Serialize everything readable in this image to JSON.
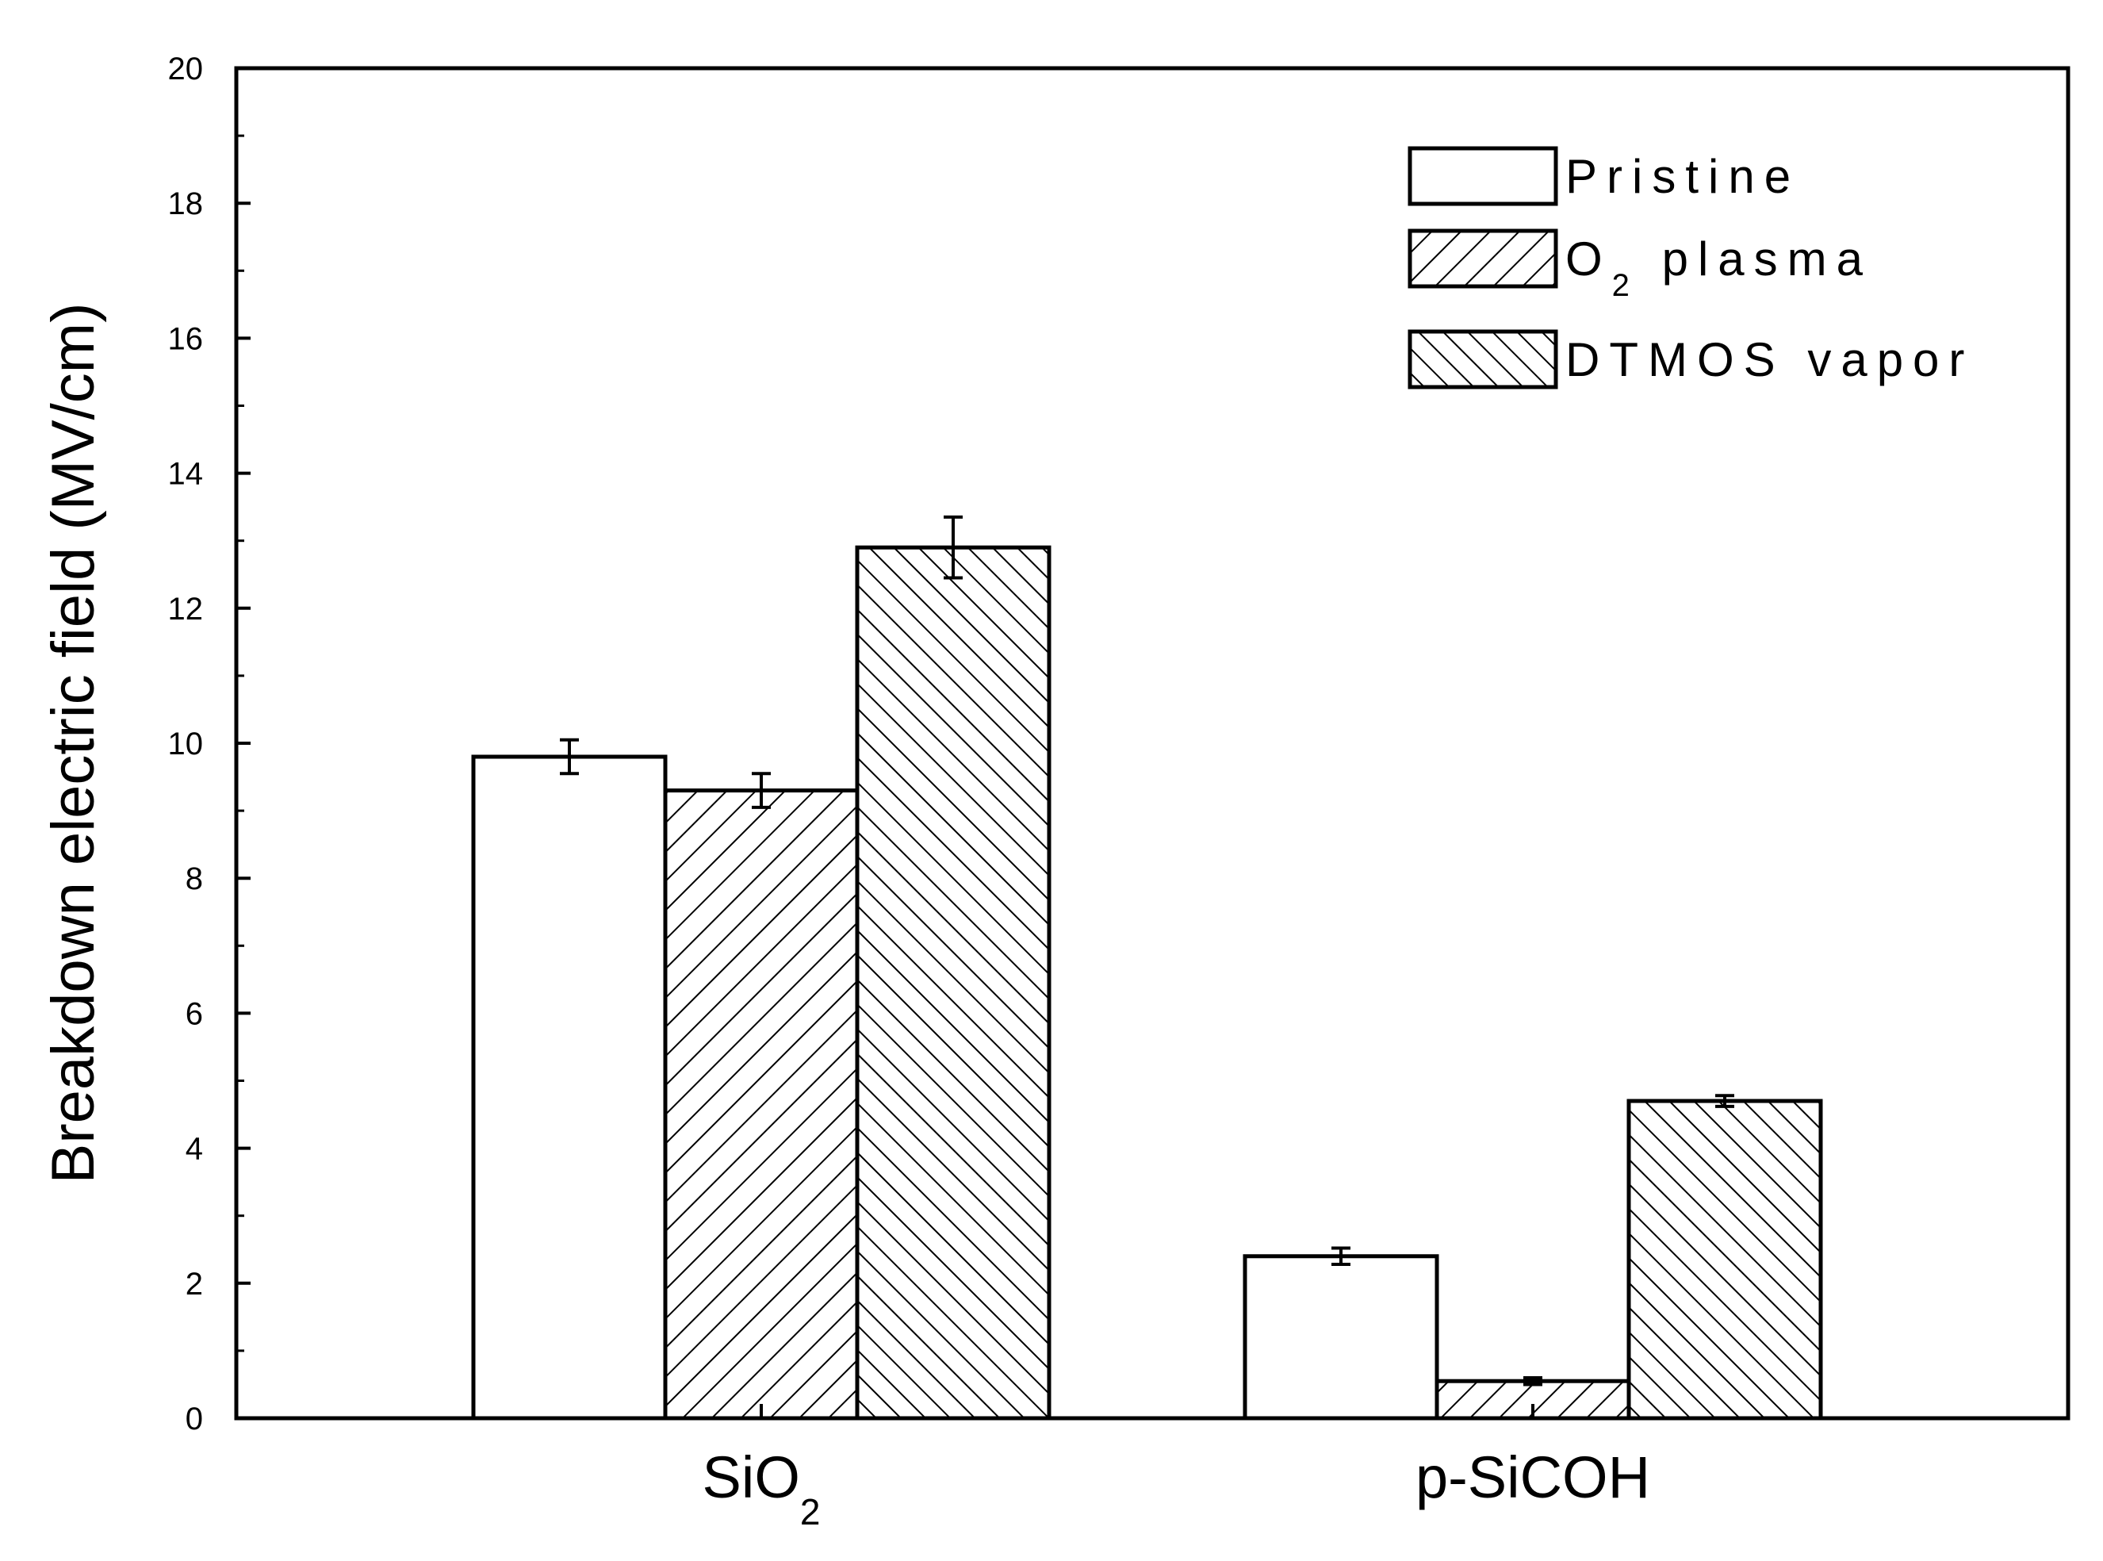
{
  "chart_data": {
    "type": "bar",
    "title": "",
    "xlabel": "",
    "ylabel": "Breakdown electric field (MV/cm)",
    "ylim": [
      0,
      20
    ],
    "yticks": [
      0,
      2,
      4,
      6,
      8,
      10,
      12,
      14,
      16,
      18,
      20
    ],
    "grid": false,
    "legend_position": "top-right",
    "categories": [
      {
        "base": "SiO",
        "sub": "2"
      },
      {
        "base": "p-SiCOH",
        "sub": ""
      }
    ],
    "series": [
      {
        "name": "Pristine",
        "name_base": "Pristine",
        "name_sub": "",
        "name_rest": "",
        "pattern": "none",
        "values": [
          9.8,
          2.4
        ],
        "errors": [
          0.25,
          0.12
        ]
      },
      {
        "name": "O2 plasma",
        "name_base": "O",
        "name_sub": "2",
        "name_rest": " plasma",
        "pattern": "forward-hatch",
        "values": [
          9.3,
          0.55
        ],
        "errors": [
          0.25,
          0.05
        ]
      },
      {
        "name": "DTMOS vapor",
        "name_base": "DTMOS vapor",
        "name_sub": "",
        "name_rest": "",
        "pattern": "back-hatch",
        "values": [
          12.9,
          4.7
        ],
        "errors": [
          0.45,
          0.08
        ]
      }
    ]
  }
}
